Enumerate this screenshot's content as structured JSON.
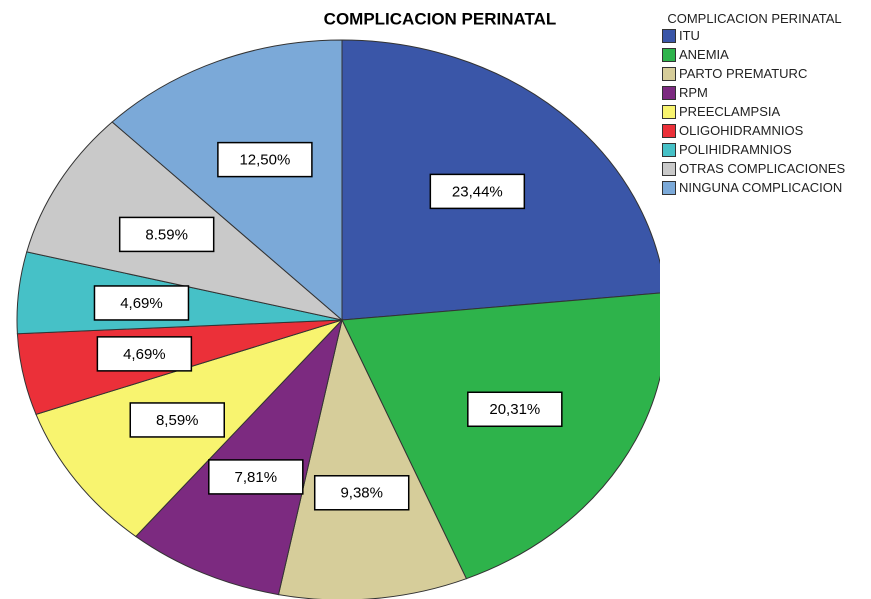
{
  "chart_data": {
    "type": "pie",
    "title": "COMPLICACION PERINATAL",
    "legend_title": "COMPLICACION PERINATAL",
    "categories": [
      "ITU",
      "ANEMIA",
      "PARTO PREMATURC",
      "RPM",
      "PREECLAMPSIA",
      "OLIGOHIDRAMNIOS",
      "POLIHIDRAMNIOS",
      "OTRAS COMPLICACIONES",
      "NINGUNA COMPLICACION"
    ],
    "values": [
      23.44,
      20.31,
      9.38,
      7.81,
      8.59,
      4.69,
      4.69,
      8.59,
      12.5
    ],
    "value_labels": [
      "23,44%",
      "20,31%",
      "9,38%",
      "7,81%",
      "8,59%",
      "4,69%",
      "4,69%",
      "8.59%",
      "12,50%"
    ],
    "colors": [
      "#3a56a8",
      "#2eb34b",
      "#d6cd9a",
      "#7c2a80",
      "#f8f46f",
      "#eb3039",
      "#46c1c7",
      "#c9c9c9",
      "#7ba9d8"
    ],
    "legend": "right"
  }
}
